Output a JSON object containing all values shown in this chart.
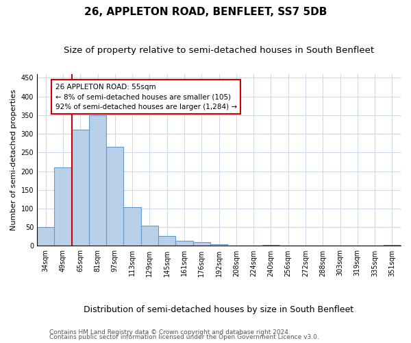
{
  "title": "26, APPLETON ROAD, BENFLEET, SS7 5DB",
  "subtitle": "Size of property relative to semi-detached houses in South Benfleet",
  "xlabel": "Distribution of semi-detached houses by size in South Benfleet",
  "ylabel": "Number of semi-detached properties",
  "categories": [
    "34sqm",
    "49sqm",
    "65sqm",
    "81sqm",
    "97sqm",
    "113sqm",
    "129sqm",
    "145sqm",
    "161sqm",
    "176sqm",
    "192sqm",
    "208sqm",
    "224sqm",
    "240sqm",
    "256sqm",
    "272sqm",
    "288sqm",
    "303sqm",
    "319sqm",
    "335sqm",
    "351sqm"
  ],
  "values": [
    50,
    210,
    312,
    350,
    265,
    104,
    55,
    26,
    14,
    10,
    5,
    0,
    0,
    3,
    0,
    0,
    0,
    0,
    0,
    0,
    3
  ],
  "bar_color": "#b8d0e8",
  "bar_edge_color": "#6699cc",
  "property_line_color": "#cc0000",
  "property_line_x": 1.5,
  "annotation_text": "26 APPLETON ROAD: 55sqm\n← 8% of semi-detached houses are smaller (105)\n92% of semi-detached houses are larger (1,284) →",
  "annotation_box_facecolor": "#ffffff",
  "annotation_box_edgecolor": "#cc0000",
  "ylim": [
    0,
    460
  ],
  "yticks": [
    0,
    50,
    100,
    150,
    200,
    250,
    300,
    350,
    400,
    450
  ],
  "background_color": "#ffffff",
  "axes_facecolor": "#ffffff",
  "grid_color": "#ccd9e8",
  "title_fontsize": 11,
  "subtitle_fontsize": 9.5,
  "xlabel_fontsize": 9,
  "ylabel_fontsize": 8,
  "tick_fontsize": 7,
  "annotation_fontsize": 7.5,
  "footer_fontsize": 6.5,
  "footer_line1": "Contains HM Land Registry data © Crown copyright and database right 2024.",
  "footer_line2": "Contains public sector information licensed under the Open Government Licence v3.0."
}
